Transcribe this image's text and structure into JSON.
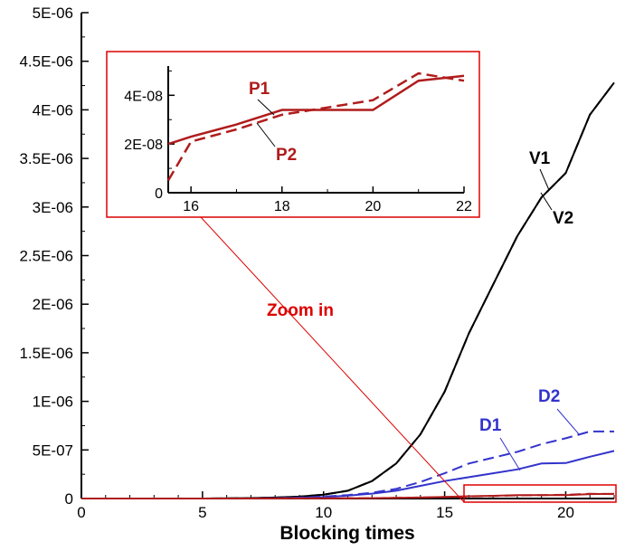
{
  "chart_data": {
    "type": "line",
    "title": "",
    "xlabel": "Blocking times",
    "ylabel": "",
    "xlim": [
      0,
      22
    ],
    "ylim": [
      0,
      5e-06
    ],
    "x_ticks": [
      {
        "value": 0,
        "label": "0"
      },
      {
        "value": 5,
        "label": "5"
      },
      {
        "value": 10,
        "label": "10"
      },
      {
        "value": 15,
        "label": "15"
      },
      {
        "value": 20,
        "label": "20"
      }
    ],
    "y_ticks": [
      {
        "value": 0,
        "label": "0"
      },
      {
        "value": 5e-07,
        "label": "5E-07"
      },
      {
        "value": 1e-06,
        "label": "1E-06"
      },
      {
        "value": 1.5e-06,
        "label": "1.5E-06"
      },
      {
        "value": 2e-06,
        "label": "2E-06"
      },
      {
        "value": 2.5e-06,
        "label": "2.5E-06"
      },
      {
        "value": 3e-06,
        "label": "3E-06"
      },
      {
        "value": 3.5e-06,
        "label": "3.5E-06"
      },
      {
        "value": 4e-06,
        "label": "4E-06"
      },
      {
        "value": 4.5e-06,
        "label": "4.5E-06"
      },
      {
        "value": 5e-06,
        "label": "5E-06"
      }
    ],
    "series": [
      {
        "name": "V1",
        "color": "#000000",
        "dash": "solid",
        "x": [
          0,
          1,
          2,
          3,
          4,
          5,
          6,
          7,
          8,
          9,
          10,
          11,
          12,
          13,
          14,
          15,
          16,
          17,
          18,
          19,
          20,
          21,
          22
        ],
        "values": [
          0,
          0,
          0,
          0,
          0,
          0,
          2e-09,
          5e-09,
          1e-08,
          2e-08,
          4e-08,
          8e-08,
          1.8e-07,
          3.6e-07,
          6.6e-07,
          1.1e-06,
          1.7e-06,
          2.2e-06,
          2.7e-06,
          3.1e-06,
          3.35e-06,
          3.95e-06,
          4.28e-06
        ]
      },
      {
        "name": "V2",
        "color": "#000000",
        "dash": "dashed",
        "x": [
          0,
          1,
          2,
          3,
          4,
          5,
          6,
          7,
          8,
          9,
          10,
          11,
          12,
          13,
          14,
          15,
          16,
          17,
          18,
          19,
          20,
          21,
          22
        ],
        "values": [
          0,
          0,
          0,
          0,
          0,
          0,
          2e-09,
          5e-09,
          1e-08,
          2e-08,
          4e-08,
          8e-08,
          1.8e-07,
          3.6e-07,
          6.6e-07,
          1.1e-06,
          1.7e-06,
          2.2e-06,
          2.7e-06,
          3.1e-06,
          3.35e-06,
          3.95e-06,
          4.28e-06
        ]
      },
      {
        "name": "D1",
        "color": "#3333cc",
        "dash": "solid",
        "x": [
          0,
          1,
          2,
          3,
          4,
          5,
          6,
          7,
          8,
          9,
          10,
          11,
          12,
          13,
          14,
          15,
          16,
          17,
          18,
          19,
          20,
          21,
          22
        ],
        "values": [
          0,
          0,
          0,
          0,
          0,
          0,
          0,
          0,
          3e-09,
          8e-09,
          1.5e-08,
          3e-08,
          5e-08,
          8e-08,
          1.3e-07,
          1.8e-07,
          2.2e-07,
          2.6e-07,
          3e-07,
          3.6e-07,
          3.65e-07,
          4.3e-07,
          4.9e-07
        ]
      },
      {
        "name": "D2",
        "color": "#3333cc",
        "dash": "dashed",
        "x": [
          0,
          1,
          2,
          3,
          4,
          5,
          6,
          7,
          8,
          9,
          10,
          11,
          12,
          13,
          14,
          15,
          16,
          17,
          18,
          19,
          20,
          21,
          22
        ],
        "values": [
          0,
          0,
          0,
          0,
          0,
          0,
          0,
          0,
          4e-09,
          1e-08,
          2e-08,
          3.5e-08,
          6e-08,
          1e-07,
          1.7e-07,
          2.6e-07,
          3.6e-07,
          4.2e-07,
          4.8e-07,
          5.6e-07,
          6.2e-07,
          6.9e-07,
          6.9e-07
        ]
      },
      {
        "name": "P1",
        "color": "#b01c1c",
        "dash": "solid",
        "x": [
          0,
          2,
          4,
          6,
          8,
          10,
          12,
          14,
          15,
          16,
          17,
          18,
          19,
          20,
          21,
          22
        ],
        "values": [
          0,
          0,
          0,
          0,
          1e-09,
          2e-09,
          4e-09,
          1e-08,
          1.6e-08,
          2.3e-08,
          2.8e-08,
          3.4e-08,
          3.4e-08,
          3.4e-08,
          4.6e-08,
          4.8e-08
        ]
      },
      {
        "name": "P2",
        "color": "#b01c1c",
        "dash": "dashed",
        "x": [
          0,
          2,
          4,
          6,
          8,
          10,
          12,
          14,
          15,
          16,
          17,
          18,
          19,
          20,
          21,
          22
        ],
        "values": [
          0,
          0,
          0,
          0,
          1e-09,
          2e-09,
          4e-09,
          1e-08,
          1.5e-08,
          2.1e-08,
          2.6e-08,
          3.2e-08,
          3.5e-08,
          3.8e-08,
          4.9e-08,
          4.6e-08
        ]
      }
    ],
    "inset": {
      "xlim": [
        15.5,
        22
      ],
      "ylim": [
        0,
        5.2e-08
      ],
      "x_ticks": [
        {
          "value": 16,
          "label": "16"
        },
        {
          "value": 18,
          "label": "18"
        },
        {
          "value": 20,
          "label": "20"
        },
        {
          "value": 22,
          "label": "22"
        }
      ],
      "y_ticks": [
        {
          "value": 0,
          "label": "0"
        },
        {
          "value": 2e-08,
          "label": "2E-08"
        },
        {
          "value": 4e-08,
          "label": "4E-08"
        }
      ],
      "series": [
        {
          "name": "P1",
          "color": "#b01c1c",
          "dash": "solid",
          "x": [
            15.5,
            16,
            17,
            18,
            19,
            20,
            21,
            22
          ],
          "values": [
            2e-08,
            2.3e-08,
            2.8e-08,
            3.4e-08,
            3.4e-08,
            3.4e-08,
            4.6e-08,
            4.8e-08
          ]
        },
        {
          "name": "P2",
          "color": "#b01c1c",
          "dash": "dashed",
          "x": [
            15.5,
            16,
            17,
            18,
            19,
            20,
            21,
            22
          ],
          "values": [
            5e-09,
            2.1e-08,
            2.6e-08,
            3.2e-08,
            3.5e-08,
            3.8e-08,
            4.9e-08,
            4.6e-08
          ]
        }
      ]
    },
    "annotations": [
      {
        "text": "Zoom in",
        "color": "#dd0000"
      },
      {
        "text": "V1",
        "series": "V1"
      },
      {
        "text": "V2",
        "series": "V2"
      },
      {
        "text": "D1",
        "series": "D1"
      },
      {
        "text": "D2",
        "series": "D2"
      },
      {
        "text": "P1",
        "series": "P1"
      },
      {
        "text": "P2",
        "series": "P2"
      }
    ]
  }
}
